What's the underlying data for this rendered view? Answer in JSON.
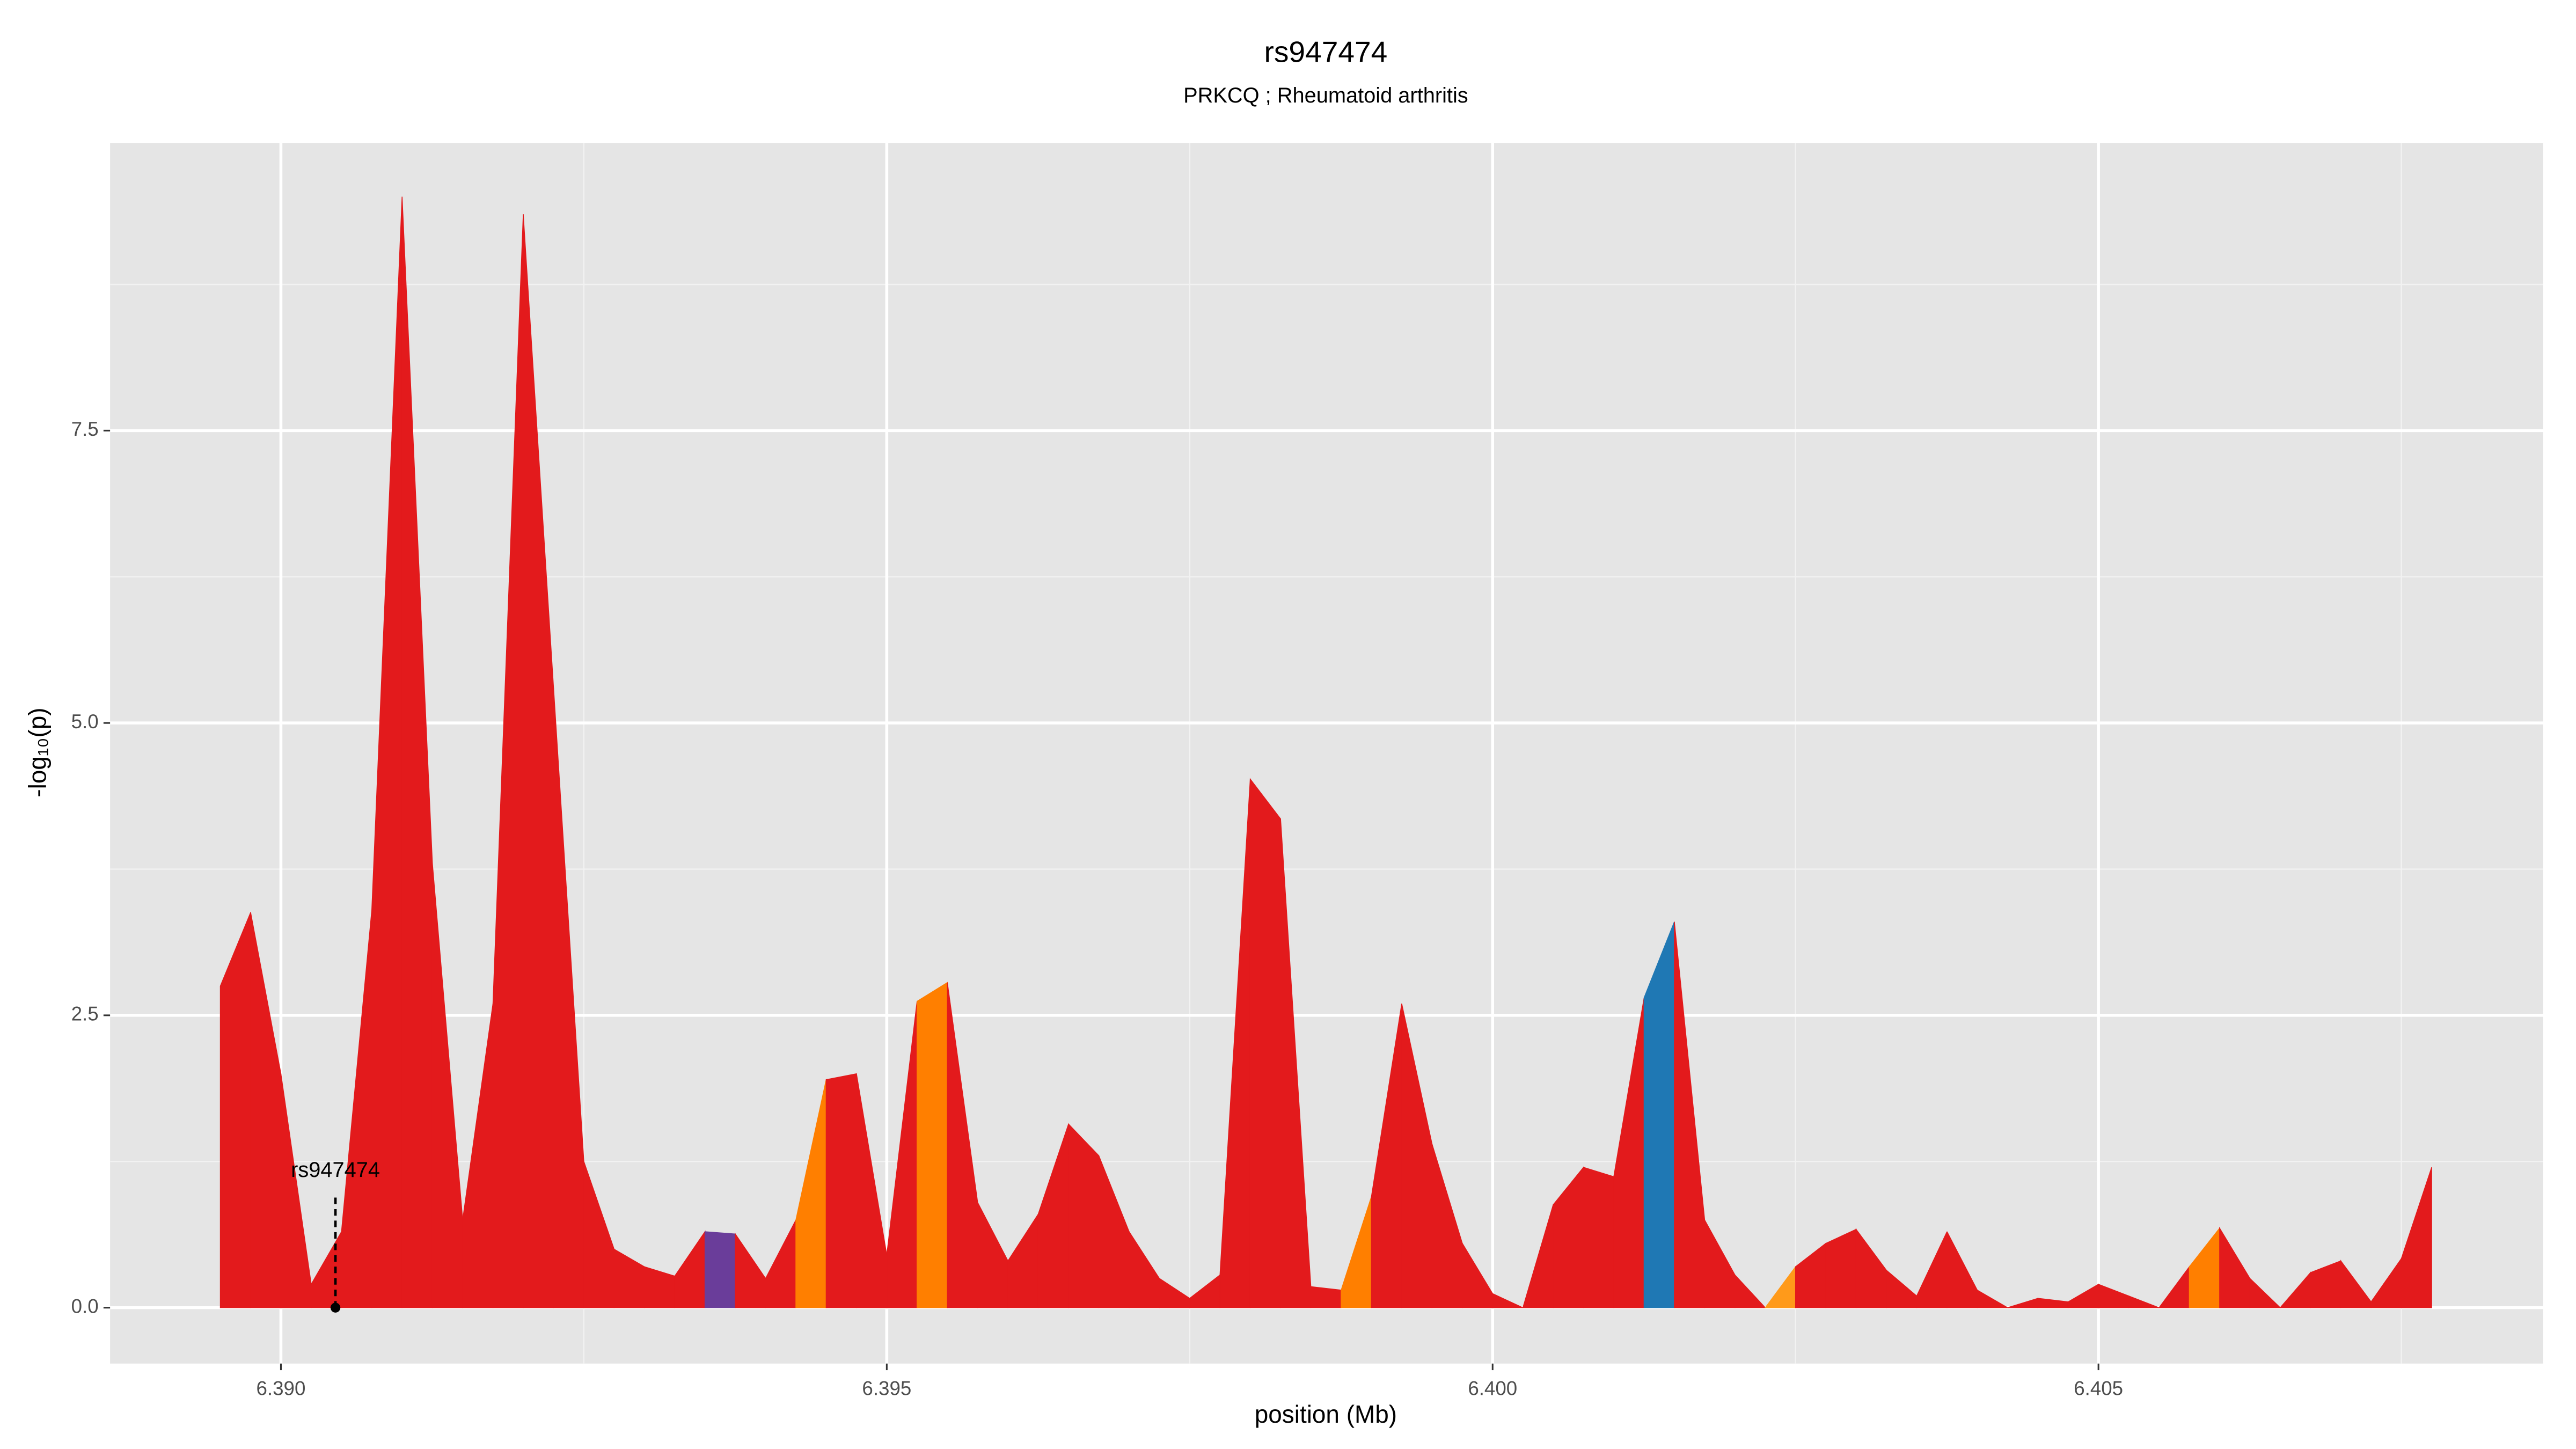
{
  "chart_data": {
    "type": "area",
    "title": "rs947474",
    "subtitle": "PRKCQ ; Rheumatoid arthritis",
    "xlabel": "position (Mb)",
    "ylabel": "-log₁₀(p)",
    "x": [
      6.3895,
      6.38975,
      6.39,
      6.39025,
      6.3905,
      6.39075,
      6.391,
      6.39125,
      6.3915,
      6.39175,
      6.392,
      6.39225,
      6.3925,
      6.39275,
      6.393,
      6.39325,
      6.3935,
      6.39375,
      6.394,
      6.39425,
      6.3945,
      6.39475,
      6.395,
      6.39525,
      6.3955,
      6.39575,
      6.396,
      6.39625,
      6.3965,
      6.39675,
      6.397,
      6.39725,
      6.3975,
      6.39775,
      6.398,
      6.39825,
      6.3985,
      6.39875,
      6.399,
      6.39925,
      6.3995,
      6.39975,
      6.4,
      6.40025,
      6.4005,
      6.40075,
      6.401,
      6.40125,
      6.4015,
      6.40175,
      6.402,
      6.40225,
      6.4025,
      6.40275,
      6.403,
      6.40325,
      6.4035,
      6.40375,
      6.404,
      6.40425,
      6.4045,
      6.40475,
      6.405,
      6.40525,
      6.4055,
      6.40575,
      6.406,
      6.40625,
      6.4065,
      6.40675,
      6.407,
      6.40725,
      6.4075,
      6.40775
    ],
    "values": [
      2.75,
      3.38,
      2.0,
      0.2,
      0.65,
      3.4,
      9.5,
      3.8,
      0.75,
      2.6,
      9.35,
      5.3,
      1.25,
      0.5,
      0.35,
      0.27,
      0.65,
      0.63,
      0.25,
      0.75,
      1.95,
      2.0,
      0.45,
      2.62,
      2.78,
      0.9,
      0.4,
      0.8,
      1.57,
      1.3,
      0.65,
      0.25,
      0.08,
      0.28,
      4.52,
      4.18,
      0.18,
      0.15,
      0.95,
      2.6,
      1.4,
      0.55,
      0.12,
      0.0,
      0.88,
      1.2,
      1.12,
      2.65,
      3.3,
      0.75,
      0.28,
      0.0,
      0.35,
      0.55,
      0.67,
      0.32,
      0.1,
      0.65,
      0.15,
      0.0,
      0.08,
      0.05,
      0.2,
      0.1,
      0.0,
      0.35,
      0.68,
      0.25,
      0.0,
      0.3,
      0.4,
      0.05,
      0.42,
      1.2
    ],
    "segment_colors": [
      "#e31a1c",
      "#e31a1c",
      "#e31a1c",
      "#e31a1c",
      "#e31a1c",
      "#e31a1c",
      "#e31a1c",
      "#e31a1c",
      "#e31a1c",
      "#e31a1c",
      "#e31a1c",
      "#e31a1c",
      "#e31a1c",
      "#e31a1c",
      "#e31a1c",
      "#e31a1c",
      "#6a3d9a",
      "#e31a1c",
      "#e31a1c",
      "#ff7f00",
      "#e31a1c",
      "#e31a1c",
      "#e31a1c",
      "#ff7f00",
      "#e31a1c",
      "#e31a1c",
      "#e31a1c",
      "#e31a1c",
      "#e31a1c",
      "#e31a1c",
      "#e31a1c",
      "#e31a1c",
      "#e31a1c",
      "#e31a1c",
      "#e31a1c",
      "#e31a1c",
      "#e31a1c",
      "#ff7f00",
      "#e31a1c",
      "#e31a1c",
      "#e31a1c",
      "#e31a1c",
      "#e31a1c",
      "#e31a1c",
      "#e31a1c",
      "#e31a1c",
      "#e31a1c",
      "#1f78b4",
      "#e31a1c",
      "#e31a1c",
      "#e31a1c",
      "#ff9a1a",
      "#e31a1c",
      "#e31a1c",
      "#e31a1c",
      "#e31a1c",
      "#e31a1c",
      "#e31a1c",
      "#e31a1c",
      "#e31a1c",
      "#e31a1c",
      "#e31a1c",
      "#e31a1c",
      "#e31a1c",
      "#e31a1c",
      "#ff7f00",
      "#e31a1c",
      "#e31a1c",
      "#e31a1c",
      "#e31a1c",
      "#e31a1c",
      "#e31a1c",
      "#e31a1c"
    ],
    "annotation": {
      "text": "rs947474",
      "x": 6.39045,
      "y": 0
    },
    "xlim": [
      6.38859,
      6.40867
    ],
    "ylim": [
      -0.478,
      9.96
    ],
    "xticks": [
      {
        "value": 6.39,
        "label": "6.390"
      },
      {
        "value": 6.395,
        "label": "6.395"
      },
      {
        "value": 6.4,
        "label": "6.400"
      },
      {
        "value": 6.405,
        "label": "6.405"
      }
    ],
    "yticks": [
      {
        "value": 0,
        "label": "0.0"
      },
      {
        "value": 2.5,
        "label": "2.5"
      },
      {
        "value": 5,
        "label": "5.0"
      },
      {
        "value": 7.5,
        "label": "7.5"
      }
    ],
    "xminor": [
      6.3925,
      6.3975,
      6.4025,
      6.4075
    ],
    "yminor": [
      1.25,
      3.75,
      6.25,
      8.75
    ],
    "grid": true
  }
}
